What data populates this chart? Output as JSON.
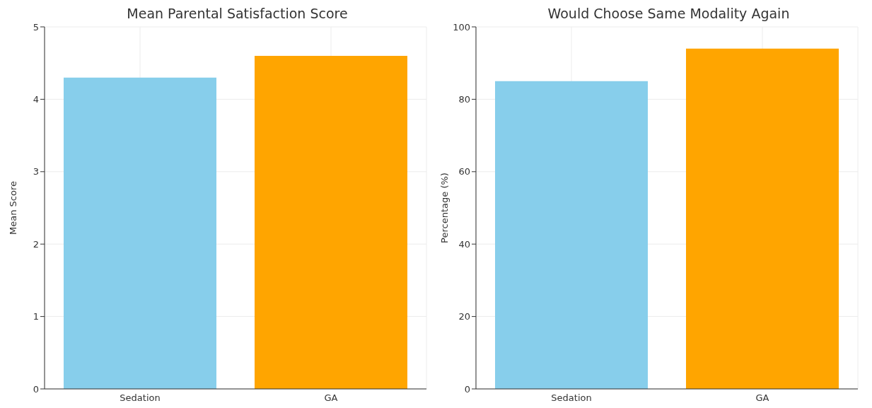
{
  "chart_data": [
    {
      "type": "bar",
      "title": "Mean Parental Satisfaction Score",
      "ylabel": "Mean Score",
      "categories": [
        "Sedation",
        "GA"
      ],
      "values": [
        4.3,
        4.6
      ],
      "colors": [
        "#87ceeb",
        "#ffa500"
      ],
      "ylim": [
        0,
        5
      ],
      "yticks": [
        0,
        1,
        2,
        3,
        4,
        5
      ],
      "grid": true
    },
    {
      "type": "bar",
      "title": "Would Choose Same Modality Again",
      "ylabel": "Percentage (%)",
      "categories": [
        "Sedation",
        "GA"
      ],
      "values": [
        85,
        94
      ],
      "colors": [
        "#87ceeb",
        "#ffa500"
      ],
      "ylim": [
        0,
        100
      ],
      "yticks": [
        0,
        20,
        40,
        60,
        80,
        100
      ],
      "grid": true
    }
  ]
}
